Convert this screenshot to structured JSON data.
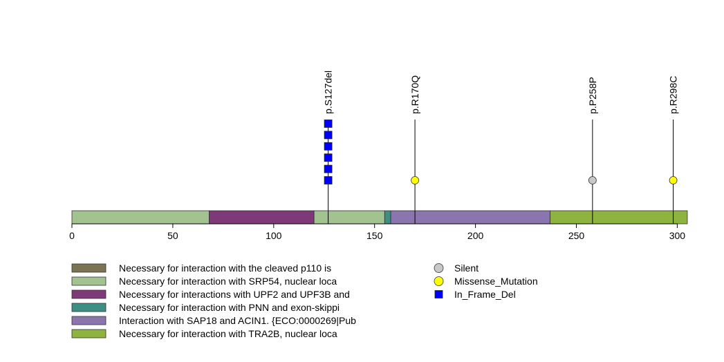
{
  "chart_data": {
    "type": "lollipop",
    "xlim": [
      0,
      305
    ],
    "x_ticks": [
      0,
      50,
      100,
      150,
      200,
      250,
      300
    ],
    "domains": [
      {
        "start": 0,
        "end": 68,
        "color": "#a2c290",
        "legend": "Necessary for interaction with SRP54, nuclear loca"
      },
      {
        "start": 68,
        "end": 120,
        "color": "#7e3a78",
        "legend": "Necessary for interactions with UPF2 and UPF3B and"
      },
      {
        "start": 120,
        "end": 155,
        "color": "#a2c290",
        "legend": "Necessary for interaction with SRP54, nuclear loca"
      },
      {
        "start": 155,
        "end": 158,
        "color": "#3d8f84",
        "legend": "Necessary for interaction with PNN and exon-skippi"
      },
      {
        "start": 158,
        "end": 237,
        "color": "#8b75ae",
        "legend": "Interaction with SAP18 and ACIN1. {ECO:0000269|Pub"
      },
      {
        "start": 237,
        "end": 305,
        "color": "#8fb33f",
        "legend": "Necessary for interaction with TRA2B, nuclear loca"
      }
    ],
    "mutations": [
      {
        "position": 127,
        "label": "p.S127del",
        "type": "In_Frame_Del",
        "count": 6
      },
      {
        "position": 170,
        "label": "p.R170Q",
        "type": "Missense_Mutation",
        "count": 1
      },
      {
        "position": 258,
        "label": "p.P258P",
        "type": "Silent",
        "count": 1
      },
      {
        "position": 298,
        "label": "p.R298C",
        "type": "Missense_Mutation",
        "count": 1
      }
    ],
    "domain_legend": [
      {
        "label": "Necessary for interaction with the cleaved p110 is",
        "color": "#7b7352"
      },
      {
        "label": "Necessary for interaction with SRP54, nuclear loca",
        "color": "#a2c290"
      },
      {
        "label": "Necessary for interactions with UPF2 and UPF3B and",
        "color": "#7e3a78"
      },
      {
        "label": "Necessary for interaction with PNN and exon-skippi",
        "color": "#3d8f84"
      },
      {
        "label": "Interaction with SAP18 and ACIN1. {ECO:0000269|Pub",
        "color": "#8b75ae"
      },
      {
        "label": "Necessary for interaction with TRA2B, nuclear loca",
        "color": "#8fb33f"
      }
    ],
    "mutation_legend": [
      {
        "label": "Silent",
        "color": "#c8c8c8",
        "shape": "circle"
      },
      {
        "label": "Missense_Mutation",
        "color": "#ffff00",
        "shape": "circle"
      },
      {
        "label": "In_Frame_Del",
        "color": "#0000ff",
        "shape": "square"
      }
    ]
  }
}
